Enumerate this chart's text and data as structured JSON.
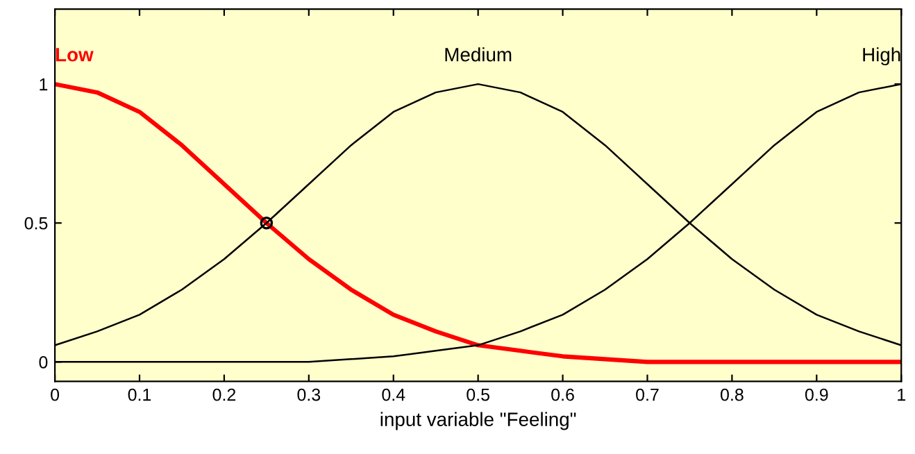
{
  "chart_data": {
    "type": "line",
    "xlabel": "input variable \"Feeling\"",
    "x": [
      0,
      0.05,
      0.1,
      0.15,
      0.2,
      0.25,
      0.3,
      0.35,
      0.4,
      0.45,
      0.5,
      0.55,
      0.6,
      0.65,
      0.7,
      0.75,
      0.8,
      0.85,
      0.9,
      0.95,
      1
    ],
    "series": [
      {
        "name": "Low",
        "color": "#ff0000",
        "values": [
          1,
          0.97,
          0.9,
          0.78,
          0.64,
          0.5,
          0.37,
          0.26,
          0.17,
          0.11,
          0.06,
          0.04,
          0.02,
          0.01,
          0,
          0,
          0,
          0,
          0,
          0,
          0
        ]
      },
      {
        "name": "Medium",
        "color": "#000000",
        "values": [
          0.06,
          0.11,
          0.17,
          0.26,
          0.37,
          0.5,
          0.64,
          0.78,
          0.9,
          0.97,
          1,
          0.97,
          0.9,
          0.78,
          0.64,
          0.5,
          0.37,
          0.26,
          0.17,
          0.11,
          0.06
        ]
      },
      {
        "name": "High",
        "color": "#000000",
        "values": [
          0,
          0,
          0,
          0,
          0,
          0,
          0,
          0.01,
          0.02,
          0.04,
          0.06,
          0.11,
          0.17,
          0.26,
          0.37,
          0.5,
          0.64,
          0.78,
          0.9,
          0.97,
          1
        ]
      },
      {
        "type": "scatter",
        "marker": "circle",
        "color": "#000000",
        "x": [
          0.25
        ],
        "values": [
          0.5
        ]
      }
    ],
    "xlim": [
      0,
      1
    ],
    "ylim": [
      -0.07,
      1.27
    ],
    "xticks": [
      0,
      0.1,
      0.2,
      0.3,
      0.4,
      0.5,
      0.6,
      0.7,
      0.8,
      0.9,
      1
    ],
    "yticks": [
      0,
      0.5,
      1
    ],
    "grid": false,
    "legend": false
  }
}
